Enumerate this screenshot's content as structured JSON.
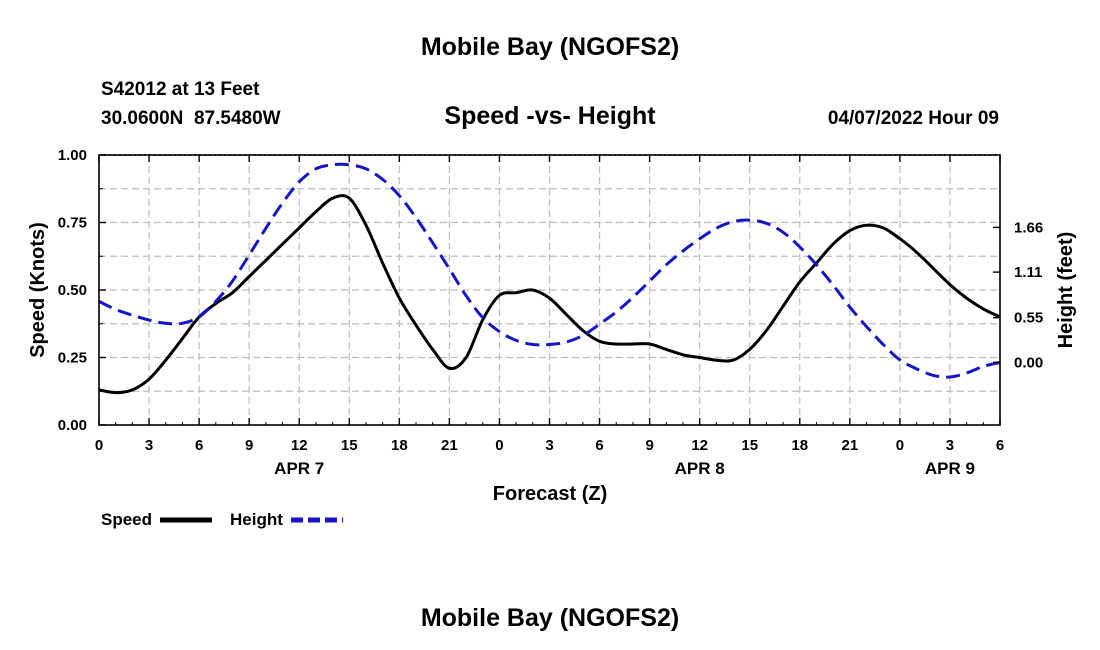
{
  "title": "Mobile Bay (NGOFS2)",
  "bottom_title": "Mobile Bay (NGOFS2)",
  "station": "S42012 at 13 Feet",
  "coordinates": "30.0600N  87.5480W",
  "timestamp": "04/07/2022 Hour 09",
  "colors": {
    "speed": "#000000",
    "height": "#1515c8",
    "grid": "#bdbdbd"
  },
  "chart_data": {
    "type": "line",
    "title": "Speed -vs- Height",
    "xlabel": "Forecast (Z)",
    "ylabel": "Speed (Knots)",
    "y2label": "Height (feet)",
    "x_unit": "hours from 04/07/2022 00Z",
    "xlim": [
      0,
      54
    ],
    "ylim": [
      0,
      1
    ],
    "y2lim": [
      -0.77,
      2.55
    ],
    "x_ticks": [
      0,
      3,
      6,
      9,
      12,
      15,
      18,
      21,
      24,
      27,
      30,
      33,
      36,
      39,
      42,
      45,
      48,
      51,
      54
    ],
    "x_tick_labels": [
      "0",
      "3",
      "6",
      "9",
      "12",
      "15",
      "18",
      "21",
      "0",
      "3",
      "6",
      "9",
      "12",
      "15",
      "18",
      "21",
      "0",
      "3",
      "6"
    ],
    "y_ticks": [
      0,
      0.25,
      0.5,
      0.75,
      1.0
    ],
    "y_tick_labels": [
      "0.00",
      "0.25",
      "0.50",
      "0.75",
      "1.00"
    ],
    "y2_ticks": [
      0.0,
      0.55,
      1.11,
      1.66
    ],
    "y2_tick_labels": [
      "0.00",
      "0.55",
      "1.11",
      "1.66"
    ],
    "date_labels": [
      {
        "x": 12,
        "label": "APR 7"
      },
      {
        "x": 36,
        "label": "APR 8"
      },
      {
        "x": 51,
        "label": "APR 9"
      }
    ],
    "grid": true,
    "legend": "bottom-left",
    "series": [
      {
        "name": "Speed",
        "axis": "left",
        "x": [
          0,
          1,
          2,
          3,
          4,
          5,
          6,
          7,
          8,
          9,
          10,
          11,
          12,
          13,
          14,
          15,
          16,
          17,
          18,
          19,
          20,
          21,
          22,
          23,
          24,
          25,
          26,
          27,
          28,
          29,
          30,
          31,
          32,
          33,
          34,
          35,
          36,
          37,
          38,
          39,
          40,
          41,
          42,
          43,
          44,
          45,
          46,
          47,
          48,
          49,
          50,
          51,
          52,
          53,
          54
        ],
        "values": [
          0.13,
          0.12,
          0.13,
          0.17,
          0.24,
          0.32,
          0.4,
          0.45,
          0.49,
          0.55,
          0.61,
          0.67,
          0.73,
          0.79,
          0.84,
          0.84,
          0.74,
          0.6,
          0.47,
          0.37,
          0.28,
          0.21,
          0.25,
          0.39,
          0.48,
          0.49,
          0.5,
          0.47,
          0.41,
          0.35,
          0.31,
          0.3,
          0.3,
          0.3,
          0.28,
          0.26,
          0.25,
          0.24,
          0.24,
          0.28,
          0.35,
          0.44,
          0.53,
          0.6,
          0.67,
          0.72,
          0.74,
          0.73,
          0.69,
          0.64,
          0.58,
          0.52,
          0.47,
          0.43,
          0.4
        ]
      },
      {
        "name": "Height",
        "axis": "right",
        "x": [
          0,
          1,
          2,
          3,
          4,
          5,
          6,
          7,
          8,
          9,
          10,
          11,
          12,
          13,
          14,
          15,
          16,
          17,
          18,
          19,
          20,
          21,
          22,
          23,
          24,
          25,
          26,
          27,
          28,
          29,
          30,
          31,
          32,
          33,
          34,
          35,
          36,
          37,
          38,
          39,
          40,
          41,
          42,
          43,
          44,
          45,
          46,
          47,
          48,
          49,
          50,
          51,
          52,
          53,
          54
        ],
        "values": [
          0.75,
          0.65,
          0.58,
          0.52,
          0.48,
          0.48,
          0.56,
          0.75,
          1.0,
          1.32,
          1.65,
          1.96,
          2.22,
          2.38,
          2.43,
          2.43,
          2.38,
          2.25,
          2.05,
          1.78,
          1.47,
          1.15,
          0.82,
          0.55,
          0.38,
          0.27,
          0.22,
          0.22,
          0.25,
          0.33,
          0.47,
          0.62,
          0.8,
          1.0,
          1.2,
          1.37,
          1.52,
          1.65,
          1.73,
          1.75,
          1.71,
          1.6,
          1.42,
          1.2,
          0.95,
          0.68,
          0.44,
          0.22,
          0.03,
          -0.08,
          -0.16,
          -0.18,
          -0.13,
          -0.05,
          0.0
        ]
      }
    ]
  }
}
